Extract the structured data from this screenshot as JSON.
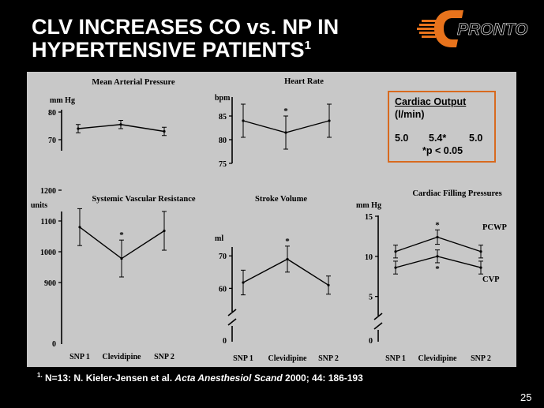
{
  "slide": {
    "title_line1": "CLV INCREASES CO vs. NP IN",
    "title_line2": "HYPERTENSIVE PATIENTS",
    "title_sup": "1",
    "logo_text": "PRONTO",
    "footnote_marker": "1.",
    "footnote_pre": " N=13:  N. Kieler-Jensen et al. ",
    "footnote_journal": "Acta Anesthesiol Scand",
    "footnote_post": " 2000; 44: 186-193",
    "page_number": "25",
    "colors": {
      "background": "#000000",
      "panel": "#c8c8c8",
      "logo": "#e8731c",
      "box_border": "#d86a1f"
    }
  },
  "cardiac_output": {
    "title": "Cardiac Output",
    "unit": "(l/min)",
    "values": [
      "5.0",
      "5.4*",
      "5.0"
    ],
    "note": "*p < 0.05"
  },
  "chart_data": [
    {
      "type": "line",
      "title": "Mean Arterial Pressure",
      "ylabel": "mm Hg",
      "categories": [
        "SNP 1",
        "Clevidipine",
        "SNP 2"
      ],
      "ylim": [
        66,
        82
      ],
      "yticks": [
        70,
        80
      ],
      "series": [
        {
          "values": [
            74.0,
            75.5,
            73.0
          ],
          "error": [
            1.5,
            1.5,
            1.5
          ],
          "sig": []
        }
      ]
    },
    {
      "type": "line",
      "title": "Heart Rate",
      "ylabel": "bpm",
      "categories": [
        "SNP 1",
        "Clevidipine",
        "SNP 2"
      ],
      "ylim": [
        75,
        89
      ],
      "yticks": [
        75,
        80,
        85
      ],
      "series": [
        {
          "values": [
            84.0,
            81.5,
            84.0
          ],
          "error": [
            3.5,
            3.5,
            3.5
          ],
          "sig": [
            1
          ]
        }
      ]
    },
    {
      "type": "line",
      "title": "Systemic Vascular Resistance",
      "ylabel": "units",
      "categories": [
        "SNP 1",
        "Clevidipine",
        "SNP 2"
      ],
      "ylim": [
        800,
        1200
      ],
      "yticks": [
        900,
        1000,
        1100,
        1200
      ],
      "zero_label": "0",
      "series": [
        {
          "values": [
            1080,
            978,
            1068
          ],
          "error": [
            60,
            60,
            63
          ],
          "sig": [
            1
          ]
        }
      ]
    },
    {
      "type": "line",
      "title": "Stroke Volume",
      "ylabel": "ml",
      "categories": [
        "SNP 1",
        "Clevidipine",
        "SNP 2"
      ],
      "ylim": [
        55,
        72
      ],
      "yticks": [
        60,
        70
      ],
      "zero_label": "0",
      "axis_break": true,
      "series": [
        {
          "values": [
            61.8,
            69.0,
            61.0
          ],
          "error": [
            3.8,
            4.0,
            2.8
          ],
          "sig": [
            1
          ]
        }
      ]
    },
    {
      "type": "line",
      "title": "Cardiac Filling Pressures",
      "ylabel": "mm Hg",
      "categories": [
        "SNP 1",
        "Clevidipine",
        "SNP 2"
      ],
      "ylim": [
        3,
        15
      ],
      "yticks": [
        5,
        10,
        15
      ],
      "zero_label": "0",
      "axis_break": true,
      "series": [
        {
          "name": "PCWP",
          "values": [
            10.6,
            12.4,
            10.6
          ],
          "error": [
            0.8,
            0.9,
            0.8
          ],
          "sig": [
            1
          ]
        },
        {
          "name": "CVP",
          "values": [
            8.6,
            10.0,
            8.6
          ],
          "error": [
            0.8,
            0.8,
            0.8
          ],
          "sig": [
            1
          ]
        }
      ]
    }
  ]
}
